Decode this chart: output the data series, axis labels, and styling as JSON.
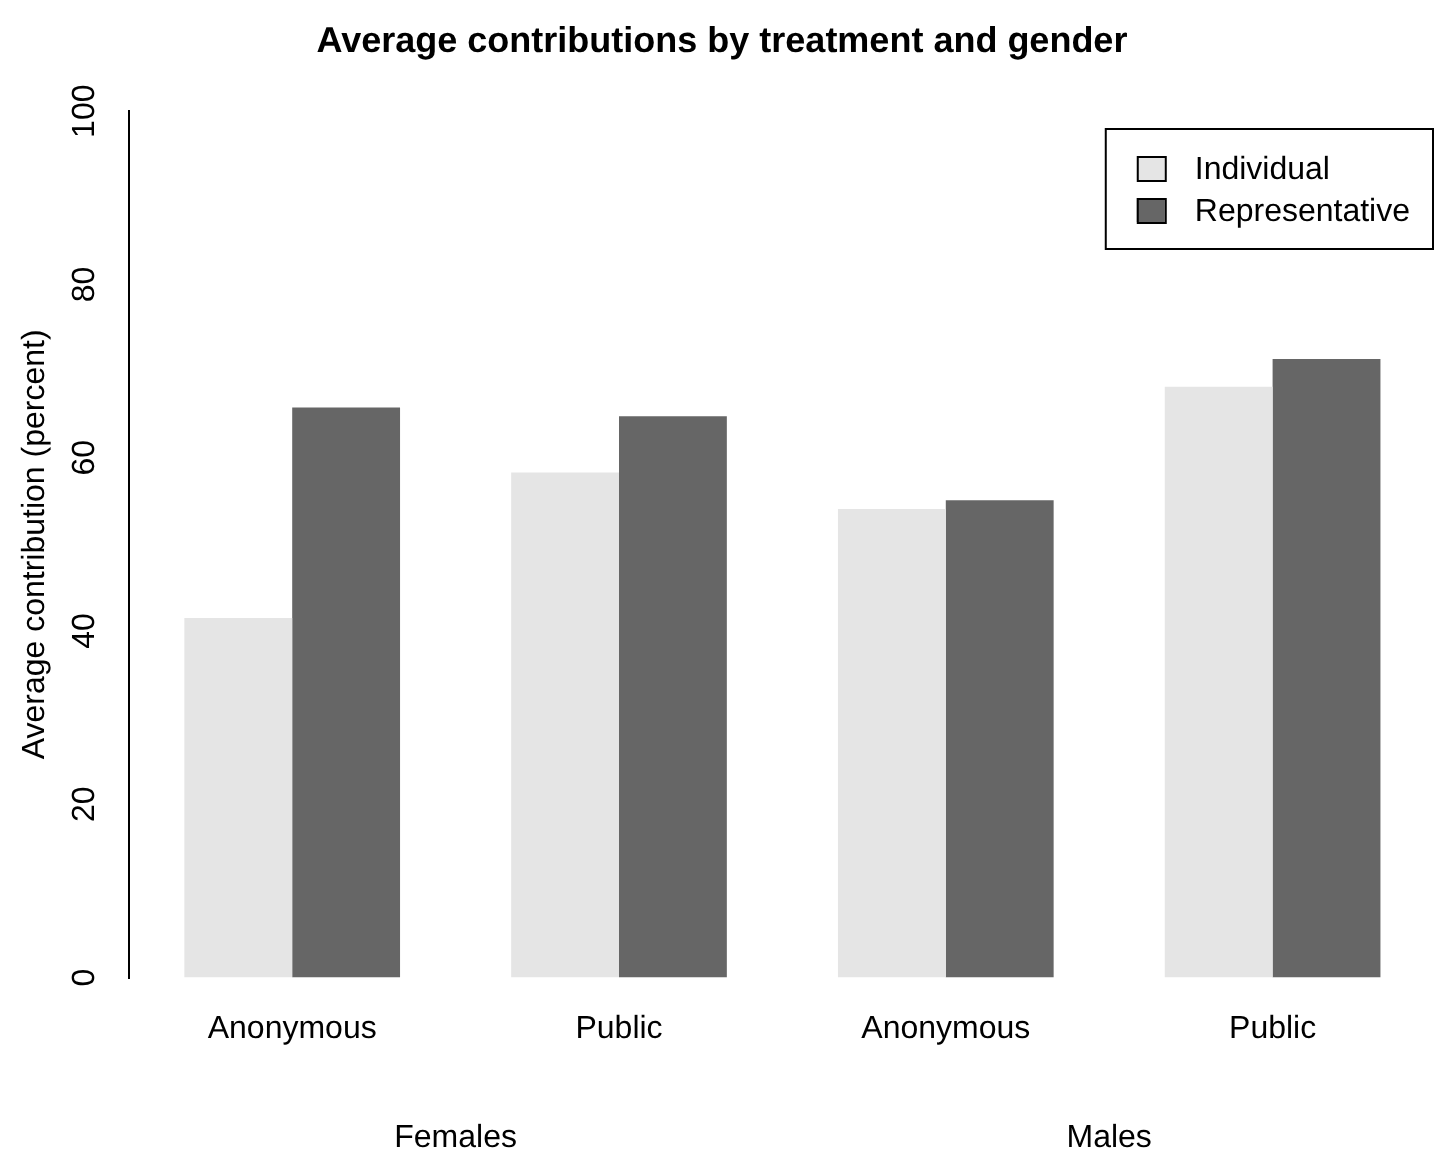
{
  "chart_data": {
    "type": "bar",
    "title": "Average contributions by treatment and gender",
    "ylabel": "Average contribution (percent)",
    "categories": [
      "Anonymous",
      "Public",
      "Anonymous",
      "Public"
    ],
    "series": [
      {
        "name": "Individual",
        "color": "#e5e5e5",
        "values": [
          41.5,
          58.3,
          54.1,
          68.2
        ]
      },
      {
        "name": "Representative",
        "color": "#666666",
        "values": [
          65.8,
          64.8,
          55.1,
          71.4
        ]
      }
    ],
    "annotations": [
      "Females",
      "Males"
    ],
    "ylim": [
      0,
      100
    ],
    "yticks": [
      0,
      20,
      40,
      60,
      80,
      100
    ],
    "grid": false,
    "legend": "top right"
  }
}
